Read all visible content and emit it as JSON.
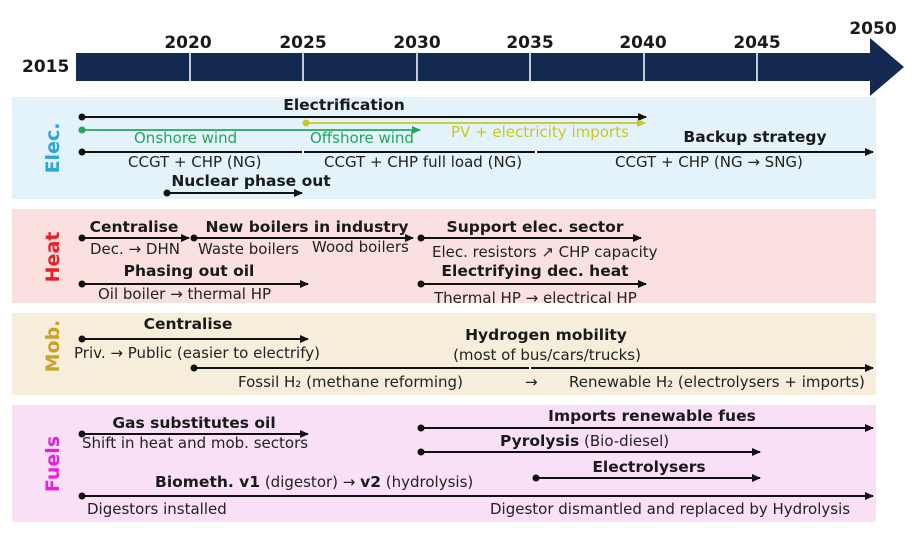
{
  "timeline": {
    "years": [
      "2015",
      "2020",
      "2025",
      "2030",
      "2035",
      "2040",
      "2045",
      "2050"
    ],
    "arrow_color": "#14294f"
  },
  "bands": [
    {
      "key": "elec",
      "label": "Elec.",
      "bg": "#e4f3fb",
      "color": "#2aa6dd"
    },
    {
      "key": "heat",
      "label": "Heat",
      "bg": "#fbe0e0",
      "color": "#ee1c24"
    },
    {
      "key": "mob",
      "label": "Mob.",
      "bg": "#f6eedb",
      "color": "#c9a227"
    },
    {
      "key": "fuels",
      "label": "Fuels",
      "bg": "#f9e0f6",
      "color": "#ec1ce4"
    }
  ],
  "colors": {
    "black": "#111111",
    "green": "#1fa85a",
    "yellow": "#c8c81e"
  },
  "elec": {
    "electrification": "Electrification",
    "onshore": "Onshore wind",
    "offshore": "Offshore wind",
    "pv": "PV + electricity imports",
    "backup": "Backup strategy",
    "ccgt1": "CCGT + CHP (NG)",
    "ccgt2": "CCGT + CHP  full load (NG)",
    "ccgt3": "CCGT + CHP (NG → SNG)",
    "nuclear": "Nuclear phase out"
  },
  "heat": {
    "centralise": "Centralise",
    "dec_dhn": "Dec. → DHN",
    "new_boilers": "New boilers in industry",
    "waste": "Waste boilers",
    "wood": "Wood boilers",
    "support": "Support elec. sector",
    "resistors": "Elec. resistors ↗ CHP capacity",
    "phasing": "Phasing out oil",
    "oil_hp": "Oil boiler → thermal HP",
    "electrifying": "Electrifying dec. heat",
    "thermal_hp": "Thermal HP → electrical HP"
  },
  "mob": {
    "centralise": "Centralise",
    "priv": "Priv. → Public (easier to electrify)",
    "hydrogen": "Hydrogen mobility",
    "most": "(most of bus/cars/trucks)",
    "fossil": "Fossil H₂ (methane reforming)",
    "arrow": "→",
    "renewable": "Renewable H₂ (electrolysers + imports)"
  },
  "fuels": {
    "gas": "Gas substitutes oil",
    "shift": "Shift in heat and mob. sectors",
    "imports": "Imports renewable fues",
    "pyrolysis_b": "Pyrolysis",
    "pyrolysis_n": " (Bio-diesel)",
    "electrolysers": "Electrolysers",
    "biometh_b1": "Biometh. v1",
    "biometh_n1": " (digestor) → ",
    "biometh_b2": "v2",
    "biometh_n2": " (hydrolysis)",
    "digestors": "Digestors installed",
    "dismantled": "Digestor dismantled and replaced by Hydrolysis"
  }
}
